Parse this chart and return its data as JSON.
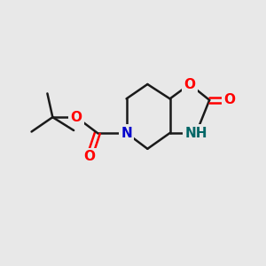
{
  "bg_color": "#e8e8e8",
  "bond_color": "#1a1a1a",
  "bond_width": 1.8,
  "O_color": "#ff0000",
  "N_color": "#0000cc",
  "NH_color": "#006666",
  "font_size": 11,
  "xlim": [
    0,
    10
  ],
  "ylim": [
    0,
    10
  ]
}
